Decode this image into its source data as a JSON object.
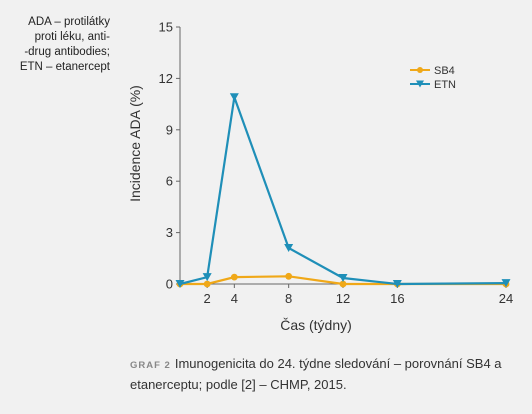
{
  "side_note": {
    "lines": [
      "ADA – protilátky",
      "proti léku, anti-",
      "-drug antibodies;",
      "ETN – etanercept"
    ]
  },
  "caption": {
    "tag": "GRAF 2",
    "text": "Imunogenicita do 24. týdne sledování – porovnání SB4 a etanerceptu; podle [2] – CHMP, 2015."
  },
  "chart_data": {
    "type": "line",
    "title": "",
    "xlabel": "Čas (týdny)",
    "ylabel": "Incidence ADA (%)",
    "x": [
      0,
      2,
      4,
      8,
      12,
      16,
      24
    ],
    "x_tick_labels": [
      "2",
      "4",
      "8",
      "12",
      "16",
      "24"
    ],
    "x_ticks": [
      2,
      4,
      8,
      12,
      16,
      24
    ],
    "xlim": [
      0,
      24
    ],
    "ylim": [
      0,
      15
    ],
    "y_ticks": [
      0,
      3,
      6,
      9,
      12,
      15
    ],
    "grid": false,
    "legend_position": "top-right",
    "series": [
      {
        "name": "SB4",
        "color": "#f0a818",
        "marker": "circle",
        "values": [
          0,
          0,
          0.4,
          0.45,
          0,
          0,
          0
        ]
      },
      {
        "name": "ETN",
        "color": "#1f8fb8",
        "marker": "triangle-down",
        "values": [
          0,
          0.4,
          10.9,
          2.1,
          0.35,
          0,
          0.05
        ]
      }
    ]
  }
}
